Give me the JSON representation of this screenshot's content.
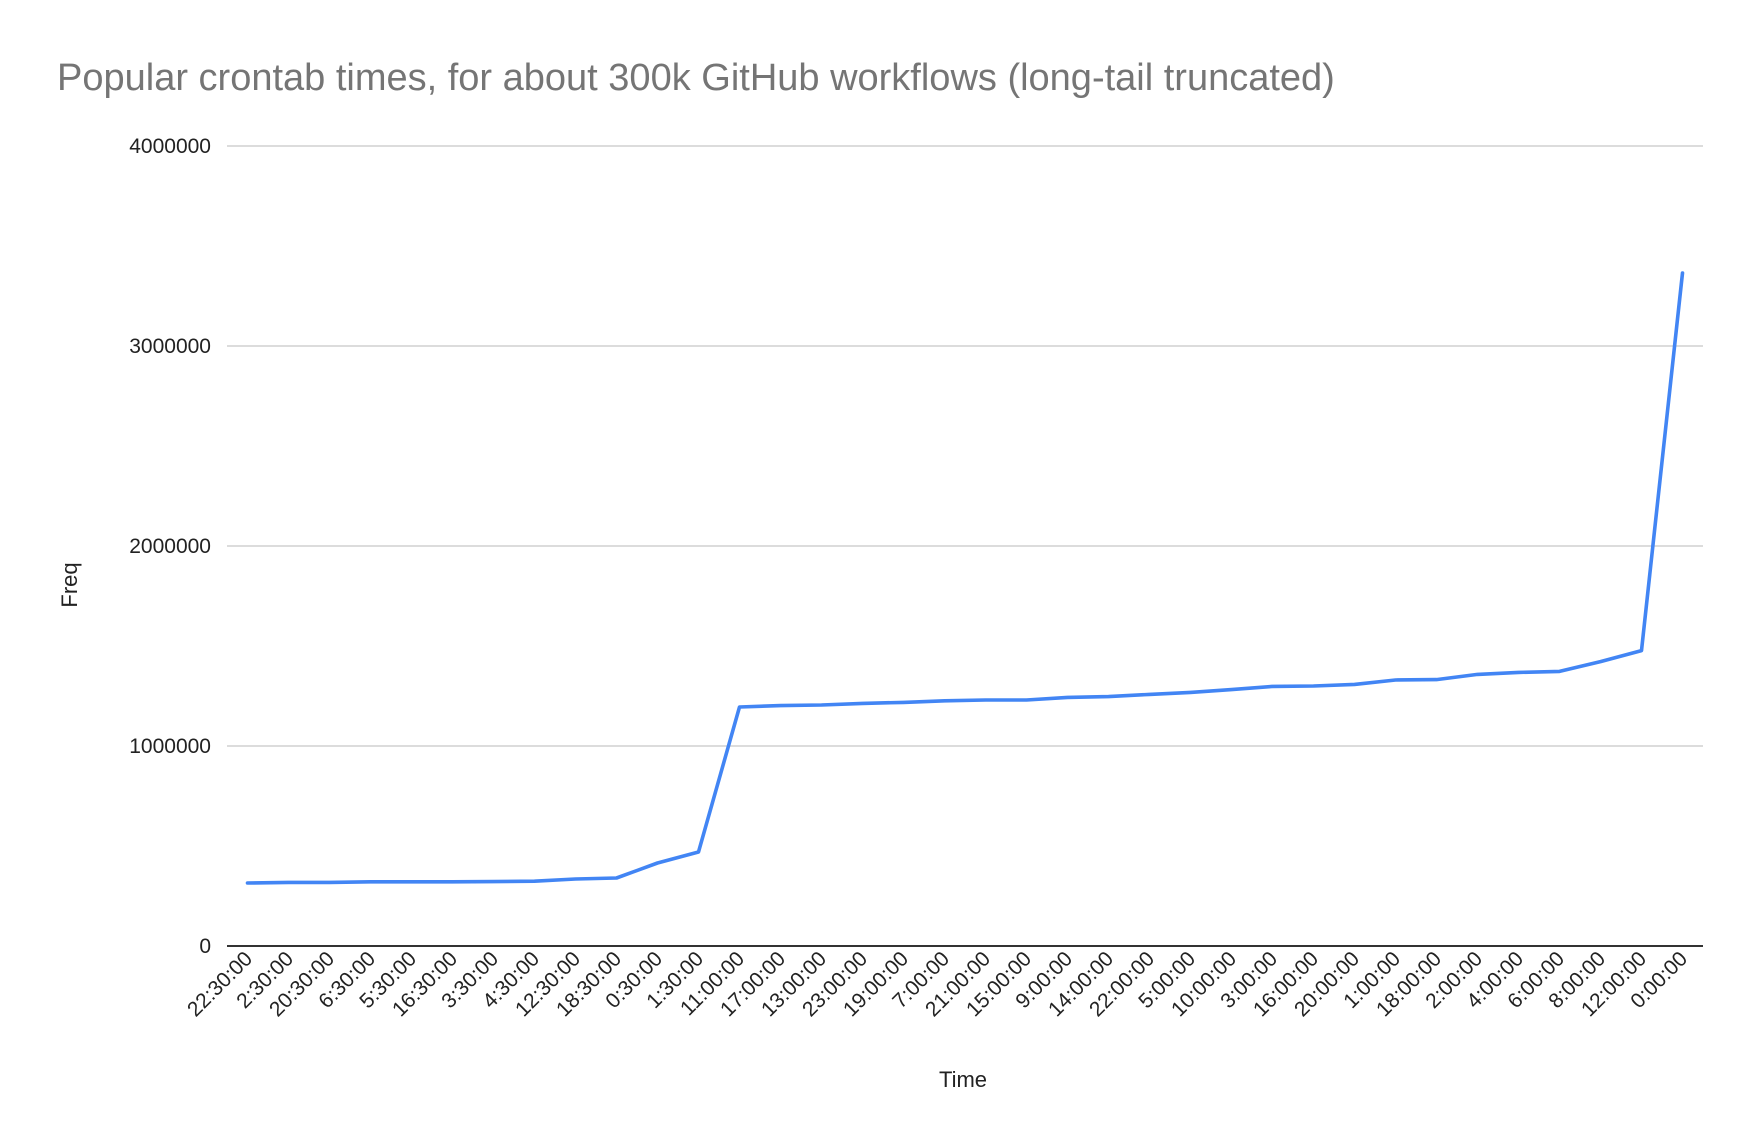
{
  "chart_data": {
    "type": "line",
    "title": "Popular crontab times, for about 300k GitHub workflows (long-tail truncated)",
    "xlabel": "Time",
    "ylabel": "Freq",
    "ylim": [
      0,
      4000000
    ],
    "yticks": [
      "0",
      "1000000",
      "2000000",
      "3000000",
      "4000000"
    ],
    "yticks_values": [
      0,
      1000000,
      2000000,
      3000000,
      4000000
    ],
    "grid": true,
    "legend": "none",
    "colors": {
      "line": "#4285f4",
      "title": "#757575",
      "grid": "#c8c8c8"
    },
    "categories": [
      "22:30:00",
      "2:30:00",
      "20:30:00",
      "6:30:00",
      "5:30:00",
      "16:30:00",
      "3:30:00",
      "4:30:00",
      "12:30:00",
      "18:30:00",
      "0:30:00",
      "1:30:00",
      "11:00:00",
      "17:00:00",
      "13:00:00",
      "23:00:00",
      "19:00:00",
      "7:00:00",
      "21:00:00",
      "15:00:00",
      "9:00:00",
      "14:00:00",
      "22:00:00",
      "5:00:00",
      "10:00:00",
      "3:00:00",
      "16:00:00",
      "20:00:00",
      "1:00:00",
      "18:00:00",
      "2:00:00",
      "4:00:00",
      "6:00:00",
      "8:00:00",
      "12:00:00",
      "0:00:00"
    ],
    "series": [
      {
        "values": [
          315000,
          318000,
          318000,
          321000,
          321000,
          321000,
          322000,
          324000,
          335000,
          340000,
          415000,
          470000,
          1195000,
          1202000,
          1205000,
          1213000,
          1218000,
          1226000,
          1230000,
          1230000,
          1243000,
          1247000,
          1258000,
          1268000,
          1282000,
          1298000,
          1300000,
          1308000,
          1330000,
          1332000,
          1358000,
          1368000,
          1373000,
          1422000,
          1477000,
          3365000
        ]
      }
    ]
  }
}
